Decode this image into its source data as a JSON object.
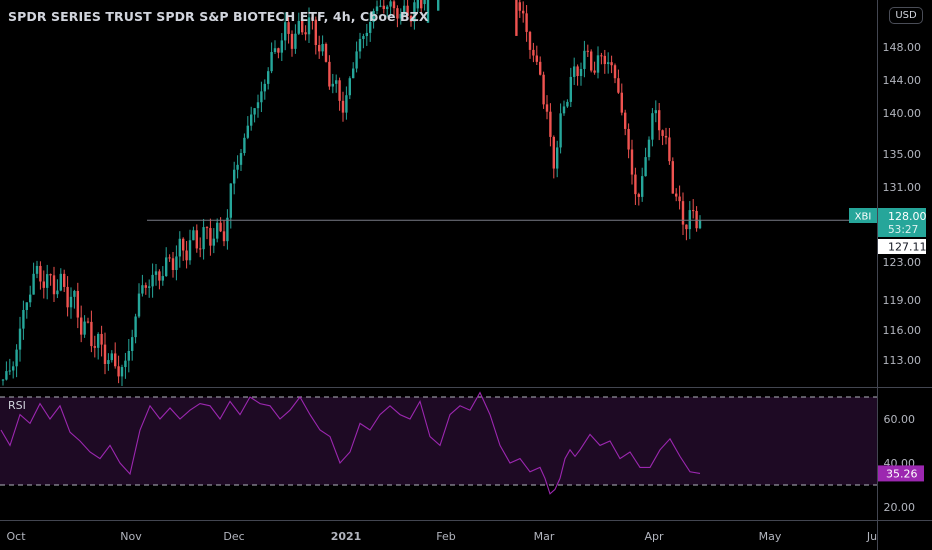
{
  "header": {
    "title": "SPDR SERIES TRUST SPDR S&P BIOTECH ETF, 4h, Cboe BZX",
    "currency": "USD"
  },
  "colors": {
    "up": "#26a69a",
    "down": "#ef5350",
    "rsi_line": "#9c27b0",
    "rsi_band": "#1e0a24",
    "price_line": "#787b86",
    "badge_ticker": "#26a69a",
    "badge_last": "#ffffff"
  },
  "chart_data": [
    {
      "type": "candlestick",
      "title": "SPDR SERIES TRUST SPDR S&P BIOTECH ETF, 4h, Cboe BZX",
      "interval": "4h",
      "exchange": "Cboe BZX",
      "ticker": "XBI",
      "y_axis_ticks": [
        113,
        116,
        119,
        123,
        127,
        131,
        135,
        140,
        144,
        148
      ],
      "y_axis_tick_labels": [
        "113.00",
        "116.00",
        "119.00",
        "123.00",
        "127.00",
        "131.00",
        "135.00",
        "140.00",
        "144.00",
        "148.00"
      ],
      "ylim": [
        110,
        153
      ],
      "x_axis_labels": [
        "Oct",
        "Nov",
        "Dec",
        "2021",
        "Feb",
        "Mar",
        "Apr",
        "May",
        "Ju"
      ],
      "price_series": {
        "x": [
          1,
          12,
          22,
          27,
          35,
          45,
          60,
          70,
          85,
          95,
          102,
          110,
          118,
          126,
          133,
          140,
          150,
          157,
          162,
          170,
          178,
          185,
          192,
          200,
          210,
          218,
          226,
          235,
          242,
          250,
          258,
          265,
          272,
          278,
          285,
          292,
          300,
          307,
          314,
          320,
          328,
          335,
          342,
          348,
          356,
          364,
          372,
          380,
          390,
          400,
          410,
          420,
          428,
          436,
          444,
          452,
          460,
          468,
          476,
          485,
          492,
          500,
          510,
          520,
          528,
          535,
          540,
          545,
          550,
          555,
          560,
          565,
          572,
          580,
          588,
          595,
          600,
          610,
          618,
          625,
          630,
          635,
          640,
          645,
          650,
          655,
          660,
          665,
          670,
          675,
          680,
          690,
          700
        ],
        "close": [
          111,
          112,
          117,
          119,
          122,
          121,
          120.5,
          119.5,
          116,
          115,
          114,
          113,
          112,
          112.5,
          116,
          120,
          121,
          121.5,
          122,
          123,
          124,
          124.5,
          125,
          125.5,
          126,
          126,
          126.5,
          134,
          135,
          140,
          141,
          144,
          147,
          148,
          150,
          149,
          150,
          151,
          150,
          148,
          145,
          143,
          141,
          142,
          148,
          149,
          152,
          153,
          153,
          152,
          152,
          154,
          156,
          156,
          158,
          158,
          158,
          159,
          159,
          157,
          157,
          157,
          158,
          152,
          150,
          145,
          146,
          140,
          137,
          134,
          138,
          142,
          144,
          146,
          147,
          145,
          147,
          146,
          143,
          138,
          134,
          131,
          129,
          135,
          138,
          140,
          139,
          136,
          134,
          130,
          128,
          127.5,
          128
        ]
      },
      "last_price": "128.00",
      "countdown": "53:27",
      "crosshair_price": "127.11",
      "horizontal_line_price": 127.5
    },
    {
      "type": "line",
      "title": "RSI",
      "y_axis_tick_labels": [
        "20.00",
        "40.00",
        "60.00"
      ],
      "ylim": [
        15,
        80
      ],
      "band": [
        30,
        70
      ],
      "x": [
        1,
        10,
        20,
        30,
        40,
        50,
        60,
        70,
        80,
        90,
        100,
        110,
        120,
        130,
        140,
        150,
        160,
        170,
        180,
        190,
        200,
        210,
        220,
        230,
        240,
        250,
        260,
        270,
        280,
        290,
        300,
        310,
        320,
        330,
        340,
        350,
        360,
        370,
        380,
        390,
        400,
        410,
        420,
        430,
        440,
        450,
        460,
        470,
        480,
        490,
        500,
        510,
        520,
        530,
        540,
        545,
        550,
        555,
        560,
        565,
        570,
        575,
        580,
        590,
        600,
        610,
        620,
        630,
        640,
        650,
        660,
        670,
        680,
        690,
        700
      ],
      "values": [
        55,
        48,
        62,
        58,
        67,
        60,
        66,
        54,
        50,
        45,
        42,
        48,
        40,
        35,
        55,
        66,
        60,
        65,
        60,
        64,
        67,
        66,
        60,
        68,
        62,
        70,
        67,
        66,
        60,
        64,
        70,
        62,
        55,
        52,
        40,
        45,
        58,
        55,
        62,
        66,
        62,
        60,
        68,
        52,
        48,
        62,
        66,
        64,
        72,
        62,
        48,
        40,
        42,
        36,
        38,
        33,
        26,
        28,
        33,
        42,
        46,
        43,
        46,
        53,
        48,
        50,
        42,
        45,
        38,
        38,
        46,
        51,
        43,
        36,
        35.26
      ],
      "last_value": "35.26"
    }
  ]
}
